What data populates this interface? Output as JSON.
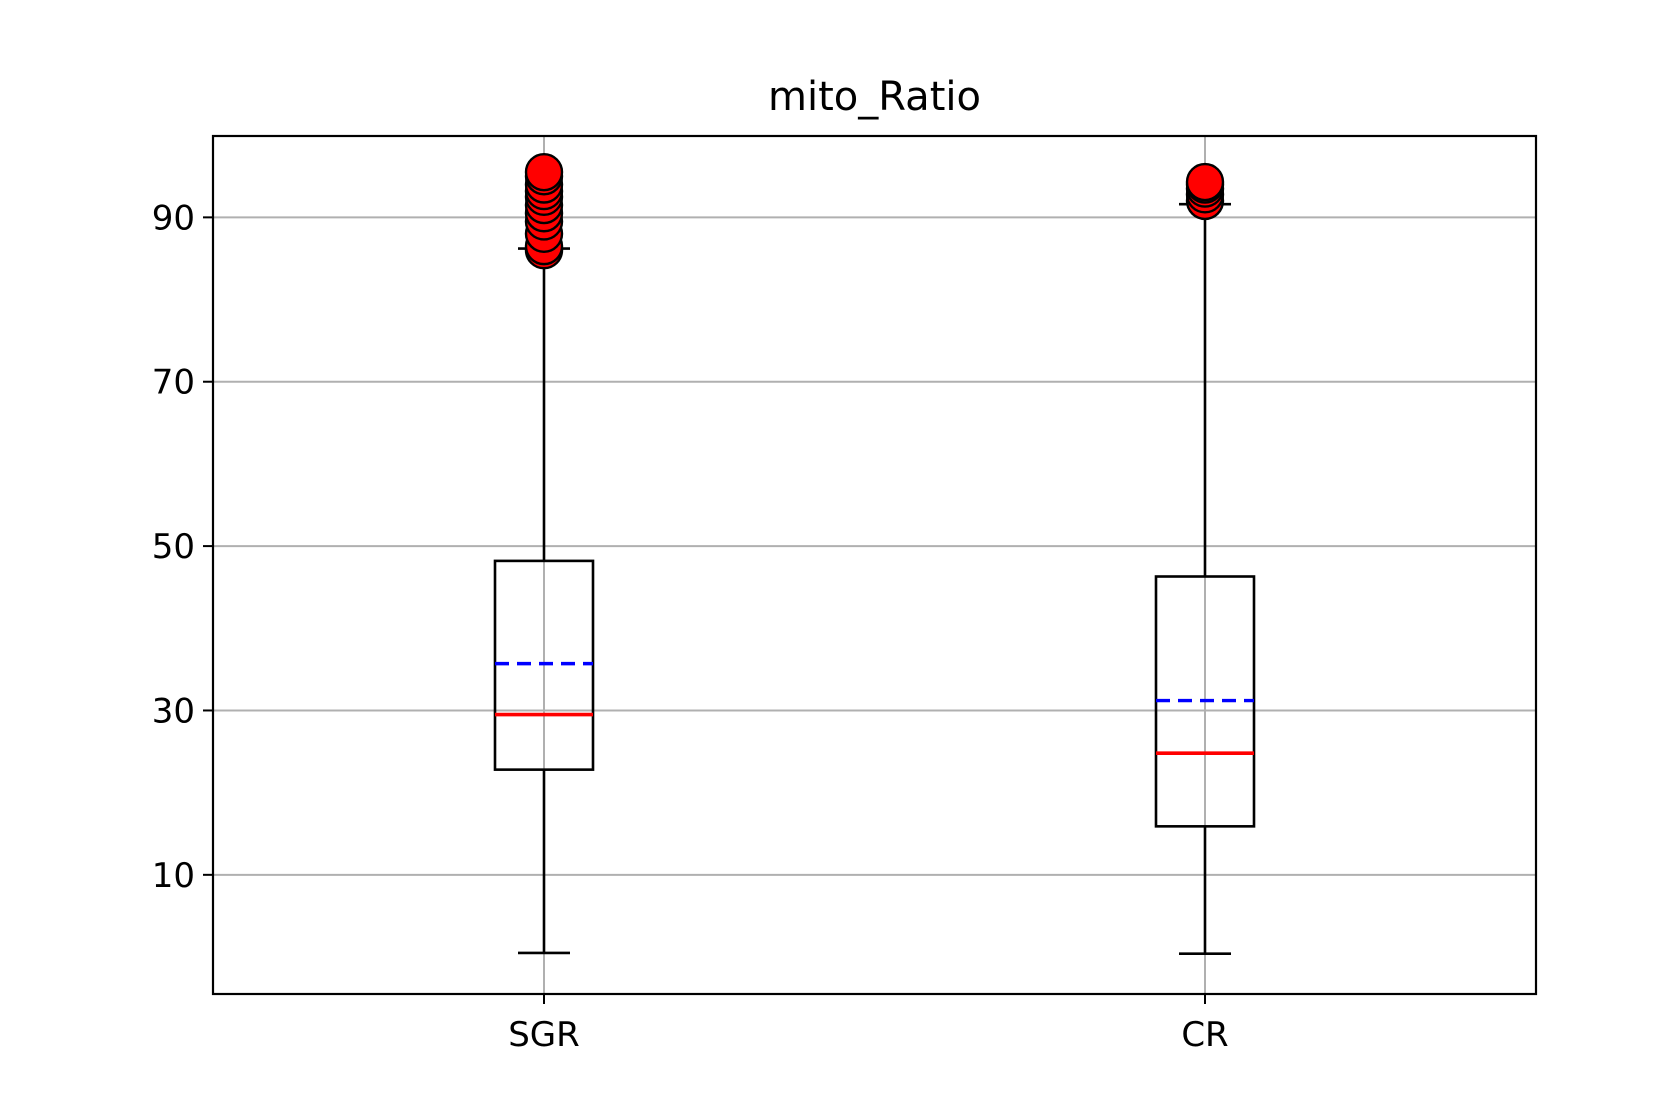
{
  "chart_data": {
    "type": "box",
    "title": "mito_Ratio",
    "xlabel": "",
    "ylabel": "",
    "categories": [
      "SGR",
      "CR"
    ],
    "ylim": [
      -4.5,
      99.9
    ],
    "yticks": [
      10,
      30,
      50,
      70,
      90
    ],
    "ytick_labels": [
      "10",
      "30",
      "50",
      "70",
      "90"
    ],
    "grid": true,
    "legend": "none",
    "boxes": [
      {
        "name": "SGR",
        "whisker_low": 0.5,
        "q1": 22.8,
        "median": 29.5,
        "mean": 35.7,
        "q3": 48.2,
        "whisker_high": 86.2,
        "outliers": [
          86.0,
          86.5,
          88.0,
          89.5,
          90.5,
          91.5,
          92.5,
          93.2,
          94.0,
          95.0,
          95.5
        ]
      },
      {
        "name": "CR",
        "whisker_low": 0.4,
        "q1": 15.9,
        "median": 24.8,
        "mean": 31.2,
        "q3": 46.3,
        "whisker_high": 91.6,
        "outliers": [
          92.0,
          92.8,
          93.5,
          94.0,
          94.3
        ]
      }
    ],
    "colors": {
      "box": "#000000",
      "median": "#ff0000",
      "mean": "#0000ff",
      "outlier_fill": "#ff0000",
      "outlier_edge": "#000000",
      "grid": "#b0b0b0"
    }
  }
}
